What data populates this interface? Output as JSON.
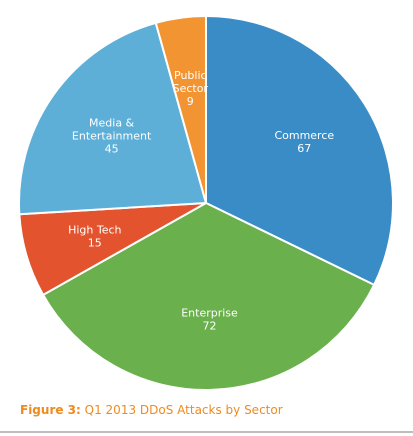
{
  "chart_data": {
    "type": "pie",
    "start_angle_deg": 0,
    "direction": "clockwise",
    "slices": [
      {
        "label": [
          "Commerce"
        ],
        "value": 67,
        "color": "#3a8cc7"
      },
      {
        "label": [
          "Enterprise"
        ],
        "value": 72,
        "color": "#6ab04c"
      },
      {
        "label": [
          "High Tech"
        ],
        "value": 15,
        "color": "#e2532e"
      },
      {
        "label": [
          "Media &",
          "Entertainment"
        ],
        "value": 45,
        "color": "#5eafd8"
      },
      {
        "label": [
          "Public",
          "Sector"
        ],
        "value": 9,
        "color": "#f39432"
      }
    ]
  },
  "caption": {
    "prefix": "Figure 3:",
    "text": "Q1 2013 DDoS Attacks by Sector",
    "color": "#f08a1c"
  }
}
